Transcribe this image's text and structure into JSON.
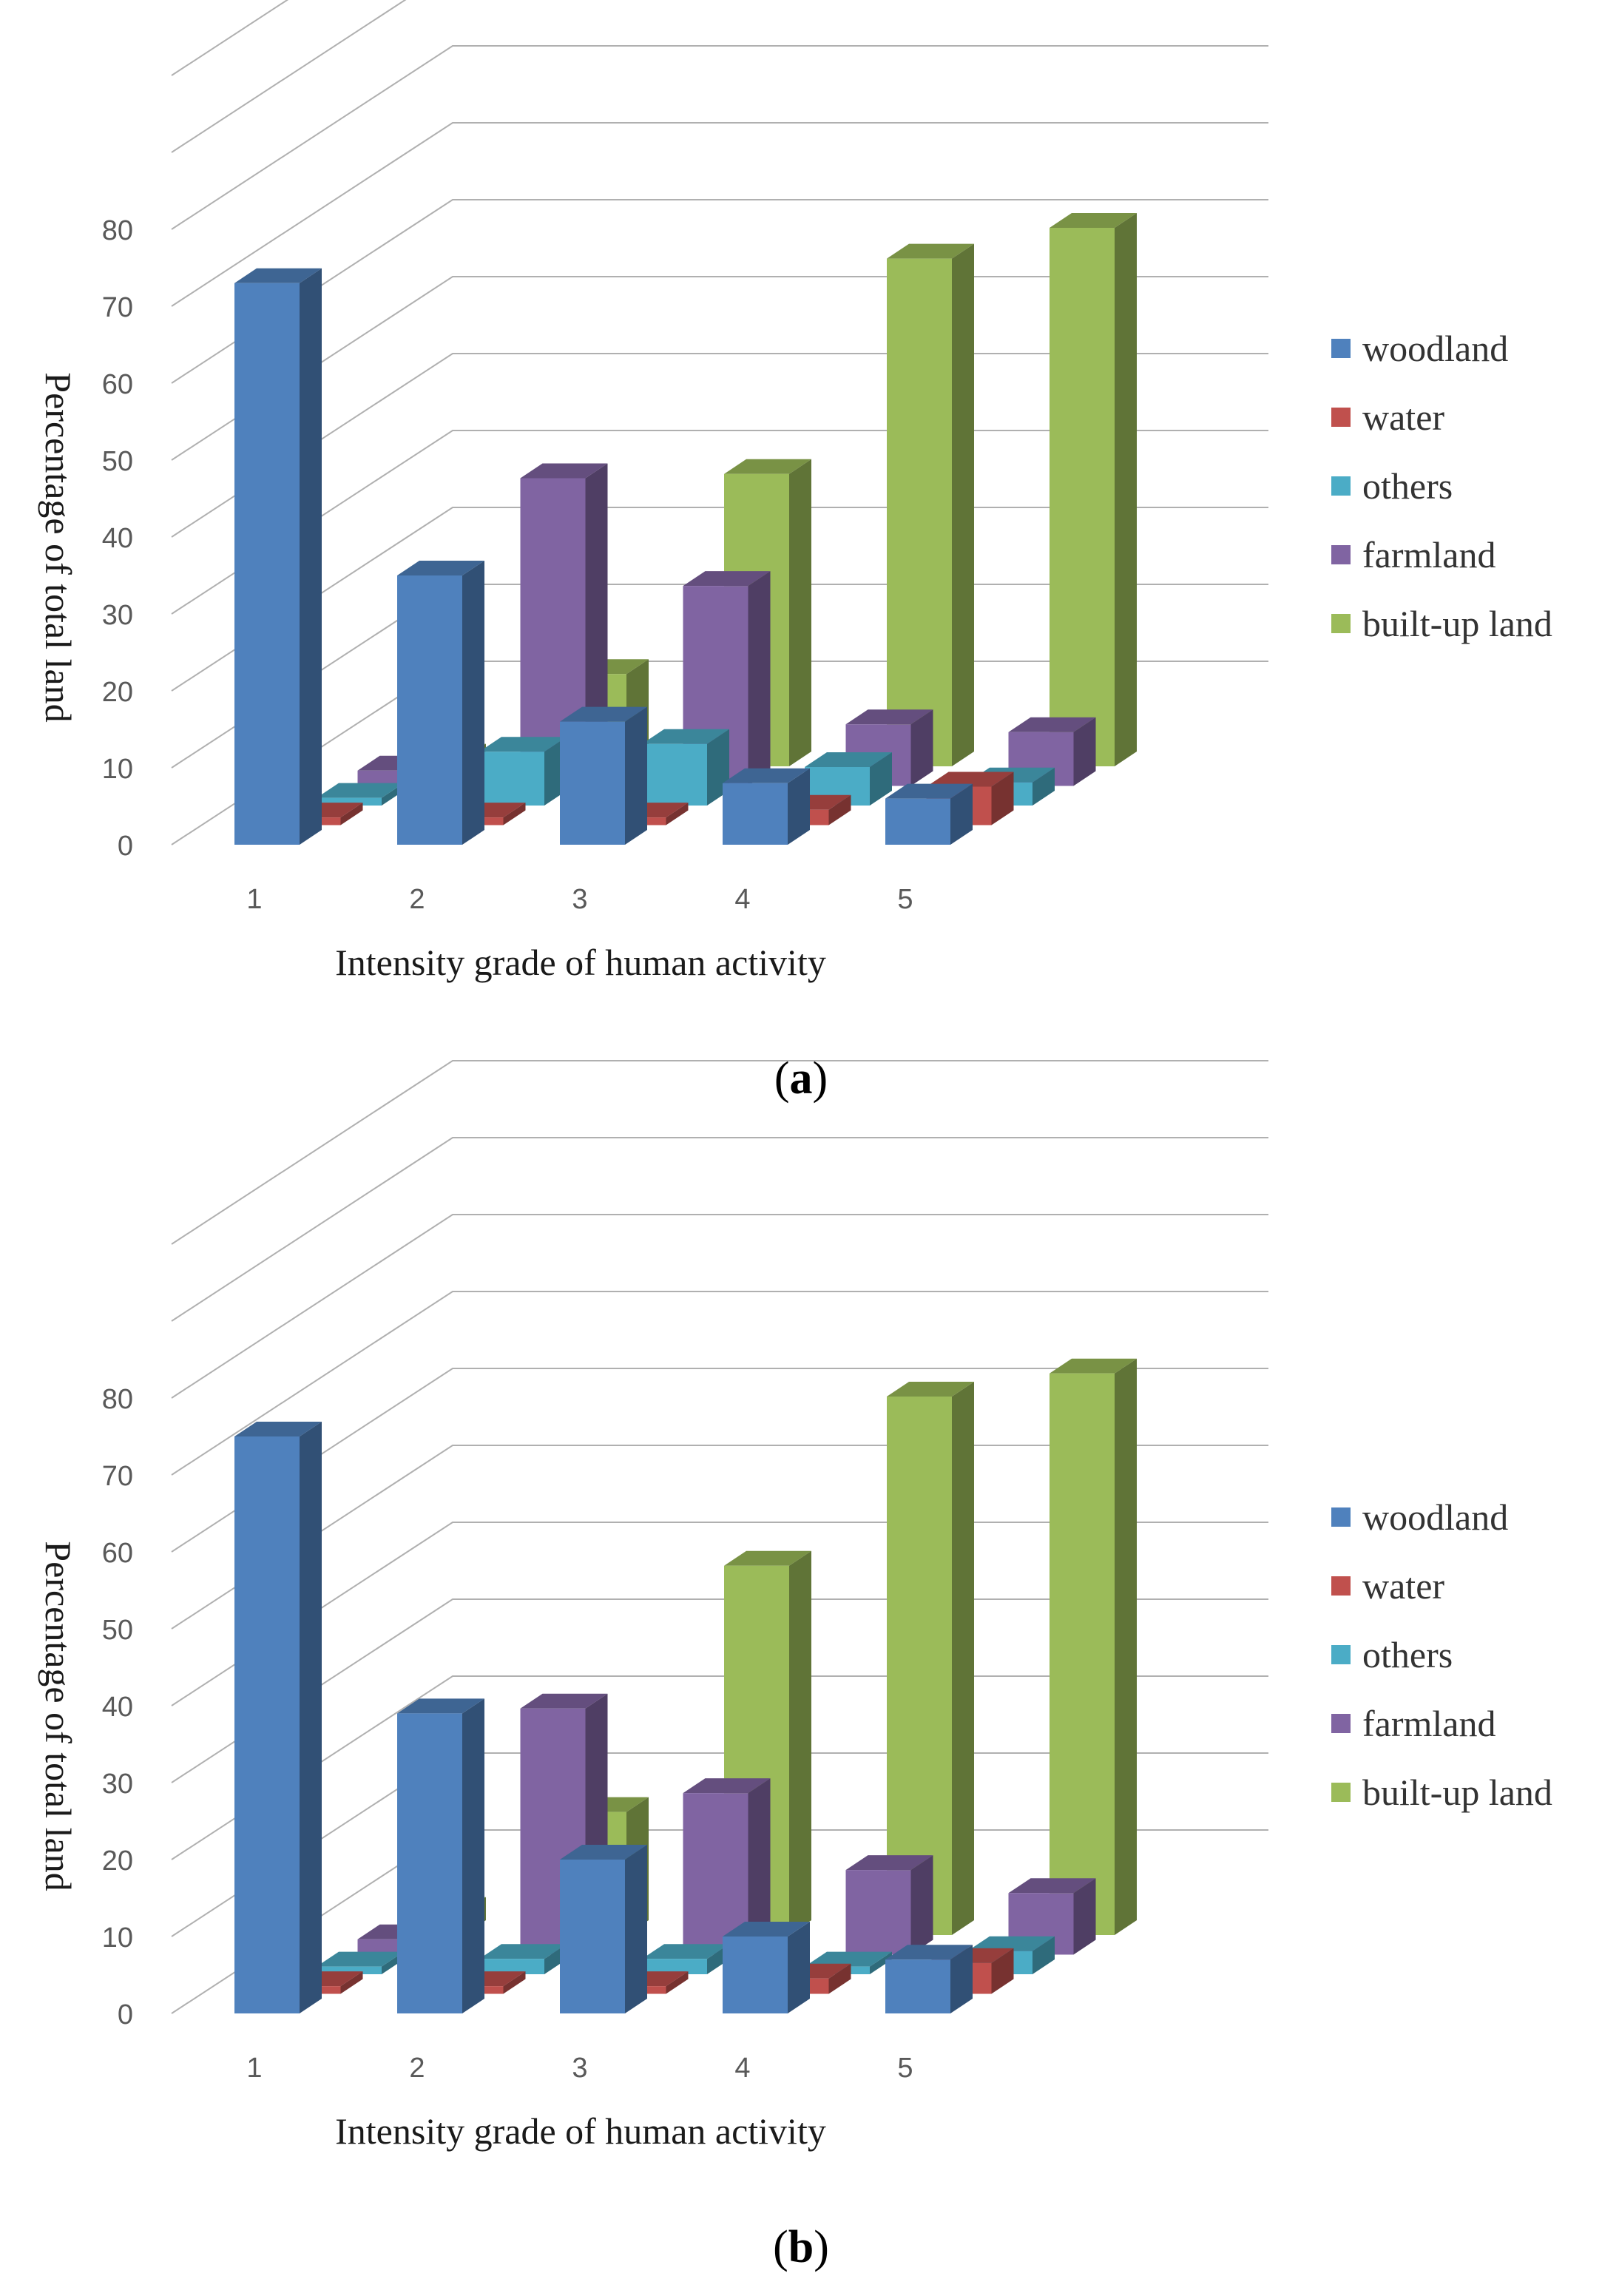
{
  "chart_data": [
    {
      "type": "bar",
      "caption": "a",
      "xlabel": "Intensity grade of human activity",
      "ylabel": "Percentage of total land",
      "ylim": [
        0,
        80
      ],
      "y_ticks": [
        "0",
        "10",
        "20",
        "30",
        "40",
        "50",
        "60",
        "70",
        "80"
      ],
      "categories": [
        "1",
        "2",
        "3",
        "4",
        "5"
      ],
      "series": [
        {
          "name": "woodland",
          "color": "#4f81bd",
          "values": [
            73,
            35,
            16,
            8,
            6
          ]
        },
        {
          "name": "water",
          "color": "#c0504d",
          "values": [
            1,
            1,
            1,
            2,
            5
          ]
        },
        {
          "name": "others",
          "color": "#4bacc6",
          "values": [
            1,
            7,
            8,
            5,
            3
          ]
        },
        {
          "name": "farmland",
          "color": "#8064a2",
          "values": [
            2,
            40,
            26,
            8,
            7
          ]
        },
        {
          "name": "built-up land",
          "color": "#9bbb59",
          "values": [
            1,
            12,
            38,
            66,
            70
          ]
        }
      ]
    },
    {
      "type": "bar",
      "caption": "b",
      "xlabel": "Intensity grade of human activity",
      "ylabel": "Percentage of total land",
      "ylim": [
        0,
        80
      ],
      "y_ticks": [
        "0",
        "10",
        "20",
        "30",
        "40",
        "50",
        "60",
        "70",
        "80"
      ],
      "categories": [
        "1",
        "2",
        "3",
        "4",
        "5"
      ],
      "series": [
        {
          "name": "woodland",
          "color": "#4f81bd",
          "values": [
            75,
            39,
            20,
            10,
            7
          ]
        },
        {
          "name": "water",
          "color": "#c0504d",
          "values": [
            1,
            1,
            1,
            2,
            4
          ]
        },
        {
          "name": "others",
          "color": "#4bacc6",
          "values": [
            1,
            2,
            2,
            1,
            3
          ]
        },
        {
          "name": "farmland",
          "color": "#8064a2",
          "values": [
            2,
            32,
            21,
            11,
            8
          ]
        },
        {
          "name": "built-up land",
          "color": "#9bbb59",
          "values": [
            3,
            16,
            48,
            70,
            73
          ]
        }
      ]
    }
  ]
}
